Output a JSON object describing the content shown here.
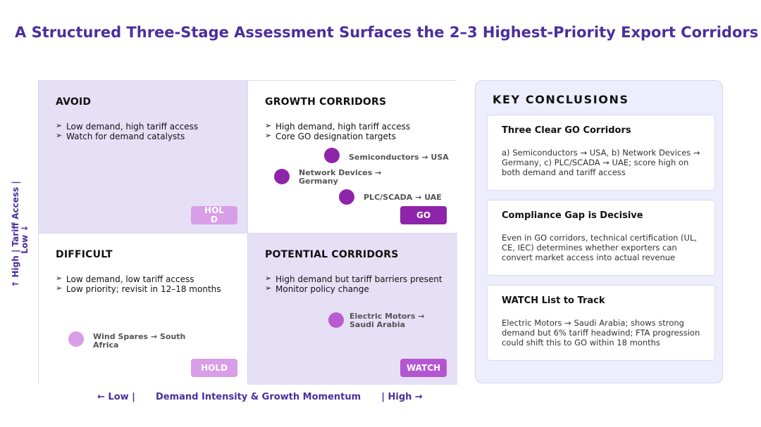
{
  "title": "A Structured Three-Stage Assessment Surfaces the 2–3 Highest-Priority Export Corridors",
  "matrix": {
    "avoid": {
      "title": "AVOID",
      "bullets": [
        "Low demand, high tariff access",
        "Watch for demand catalysts"
      ],
      "badge": "HOLD"
    },
    "growth": {
      "title": "GROWTH CORRIDORS",
      "bullets": [
        "High demand, high tariff access",
        "Core GO designation targets"
      ],
      "badge": "GO",
      "corridors": [
        {
          "label": "Semiconductors → USA"
        },
        {
          "label": "Network Devices → Germany"
        },
        {
          "label": "PLC/SCADA → UAE"
        }
      ]
    },
    "difficult": {
      "title": "DIFFICULT",
      "bullets": [
        "Low demand, low tariff access",
        "Low priority; revisit in 12–18 months"
      ],
      "badge": "HOLD",
      "corridors": [
        {
          "label": "Wind Spares → South Africa"
        }
      ]
    },
    "potential": {
      "title": "POTENTIAL CORRIDORS",
      "bullets": [
        "High demand but tariff barriers present",
        "Monitor policy change"
      ],
      "badge": "WATCH",
      "corridors": [
        {
          "label": "Electric Motors → Saudi Arabia"
        }
      ]
    }
  },
  "axes": {
    "y_label": "↑ High  |   Tariff Access  |",
    "y_label_2": "Low ↓",
    "x_low": "← Low  |",
    "x_label": "Demand Intensity & Growth Momentum",
    "x_high": "|  High →"
  },
  "conclusions": {
    "title": "KEY CONCLUSIONS",
    "cards": [
      {
        "title": "Three Clear GO Corridors",
        "body": "a) Semiconductors → USA, b) Network Devices → Germany,  c) PLC/SCADA → UAE; score high on both demand and tariff access"
      },
      {
        "title": "Compliance Gap is Decisive",
        "body": "Even in GO corridors, technical certification (UL, CE, IEC) determines whether exporters can convert market access into actual revenue"
      },
      {
        "title": "WATCH List to Track",
        "body": "Electric Motors → Saudi Arabia; shows strong demand but 6% tariff headwind; FTA progression could shift this to GO within 18 months"
      }
    ]
  },
  "colors": {
    "title": "#4b2f9c",
    "go": "#8e24aa",
    "watch": "#b556d1",
    "hold": "#d99ee8",
    "quadrant_fill": "#e6e0f7",
    "panel_fill": "#eeedfc"
  }
}
